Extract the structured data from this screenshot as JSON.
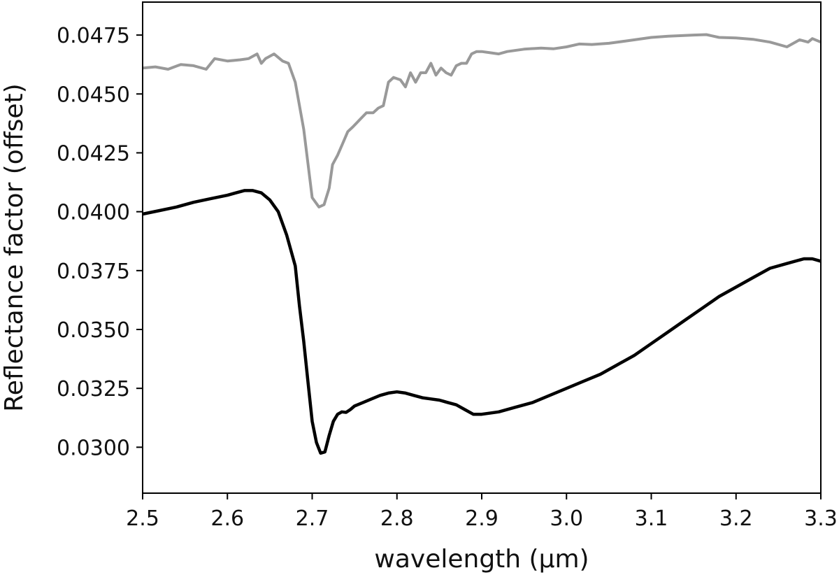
{
  "chart_data": {
    "type": "line",
    "title": "",
    "xlabel": "wavelength (µm)",
    "ylabel": "Reflectance factor (offset)",
    "xlim": [
      2.5,
      3.3
    ],
    "ylim": [
      0.02805,
      0.0489
    ],
    "grid": false,
    "x_ticks": [
      {
        "value": 2.5,
        "label": "2.5"
      },
      {
        "value": 2.6,
        "label": "2.6"
      },
      {
        "value": 2.7,
        "label": "2.7"
      },
      {
        "value": 2.8,
        "label": "2.8"
      },
      {
        "value": 2.9,
        "label": "2.9"
      },
      {
        "value": 3.0,
        "label": "3.0"
      },
      {
        "value": 3.1,
        "label": "3.1"
      },
      {
        "value": 3.2,
        "label": "3.2"
      },
      {
        "value": 3.3,
        "label": "3.3"
      }
    ],
    "y_ticks": [
      {
        "value": 0.03,
        "label": "0.0300"
      },
      {
        "value": 0.0325,
        "label": "0.0325"
      },
      {
        "value": 0.035,
        "label": "0.0350"
      },
      {
        "value": 0.0375,
        "label": "0.0375"
      },
      {
        "value": 0.04,
        "label": "0.0400"
      },
      {
        "value": 0.0425,
        "label": "0.0425"
      },
      {
        "value": 0.045,
        "label": "0.0450"
      },
      {
        "value": 0.0475,
        "label": "0.0475"
      }
    ],
    "series": [
      {
        "color": "#999999",
        "x": [
          2.5,
          2.515,
          2.53,
          2.545,
          2.56,
          2.575,
          2.585,
          2.6,
          2.615,
          2.625,
          2.635,
          2.64,
          2.645,
          2.655,
          2.665,
          2.672,
          2.68,
          2.69,
          2.7,
          2.708,
          2.714,
          2.72,
          2.724,
          2.73,
          2.736,
          2.742,
          2.748,
          2.756,
          2.764,
          2.772,
          2.778,
          2.784,
          2.79,
          2.796,
          2.804,
          2.81,
          2.816,
          2.822,
          2.828,
          2.834,
          2.84,
          2.846,
          2.852,
          2.858,
          2.864,
          2.87,
          2.876,
          2.882,
          2.888,
          2.894,
          2.9,
          2.91,
          2.92,
          2.93,
          2.95,
          2.97,
          2.985,
          3.0,
          3.015,
          3.03,
          3.05,
          3.07,
          3.1,
          3.12,
          3.15,
          3.165,
          3.18,
          3.2,
          3.22,
          3.24,
          3.26,
          3.275,
          3.285,
          3.29,
          3.3
        ],
        "y": [
          0.0461,
          0.04615,
          0.04605,
          0.04625,
          0.0462,
          0.04605,
          0.0465,
          0.0464,
          0.04645,
          0.0465,
          0.0467,
          0.0463,
          0.0465,
          0.0467,
          0.0464,
          0.0463,
          0.0455,
          0.0435,
          0.0406,
          0.0402,
          0.0403,
          0.041,
          0.042,
          0.0424,
          0.0429,
          0.0434,
          0.0436,
          0.0439,
          0.0442,
          0.0442,
          0.0444,
          0.0445,
          0.0455,
          0.0457,
          0.0456,
          0.0453,
          0.0459,
          0.0455,
          0.0459,
          0.0459,
          0.0463,
          0.0458,
          0.0461,
          0.0459,
          0.0458,
          0.0462,
          0.0463,
          0.0463,
          0.0467,
          0.0468,
          0.0468,
          0.04675,
          0.0467,
          0.0468,
          0.0469,
          0.04695,
          0.04692,
          0.047,
          0.04712,
          0.0471,
          0.04715,
          0.04725,
          0.0474,
          0.04745,
          0.0475,
          0.04752,
          0.0474,
          0.04738,
          0.04732,
          0.0472,
          0.047,
          0.0473,
          0.0472,
          0.04735,
          0.0472
        ]
      },
      {
        "color": "#000000",
        "x": [
          2.5,
          2.52,
          2.54,
          2.56,
          2.58,
          2.6,
          2.61,
          2.62,
          2.625,
          2.63,
          2.64,
          2.65,
          2.66,
          2.67,
          2.68,
          2.685,
          2.69,
          2.695,
          2.7,
          2.705,
          2.71,
          2.715,
          2.72,
          2.725,
          2.73,
          2.735,
          2.74,
          2.745,
          2.75,
          2.76,
          2.77,
          2.78,
          2.79,
          2.8,
          2.81,
          2.82,
          2.83,
          2.84,
          2.85,
          2.86,
          2.87,
          2.88,
          2.89,
          2.9,
          2.92,
          2.94,
          2.96,
          2.98,
          3.0,
          3.02,
          3.04,
          3.06,
          3.08,
          3.1,
          3.12,
          3.14,
          3.16,
          3.18,
          3.2,
          3.22,
          3.24,
          3.26,
          3.28,
          3.29,
          3.3
        ],
        "y": [
          0.0399,
          0.04005,
          0.0402,
          0.0404,
          0.04055,
          0.0407,
          0.0408,
          0.0409,
          0.0409,
          0.0409,
          0.0408,
          0.0405,
          0.04,
          0.039,
          0.0377,
          0.036,
          0.0345,
          0.0328,
          0.0311,
          0.0302,
          0.02975,
          0.0298,
          0.0305,
          0.0311,
          0.0314,
          0.0315,
          0.03148,
          0.0316,
          0.03175,
          0.0319,
          0.03205,
          0.0322,
          0.0323,
          0.03235,
          0.0323,
          0.0322,
          0.0321,
          0.03205,
          0.032,
          0.0319,
          0.0318,
          0.0316,
          0.0314,
          0.0314,
          0.0315,
          0.0317,
          0.0319,
          0.0322,
          0.0325,
          0.0328,
          0.0331,
          0.0335,
          0.0339,
          0.0344,
          0.0349,
          0.0354,
          0.0359,
          0.0364,
          0.0368,
          0.0372,
          0.0376,
          0.0378,
          0.038,
          0.038,
          0.0379
        ]
      }
    ]
  }
}
